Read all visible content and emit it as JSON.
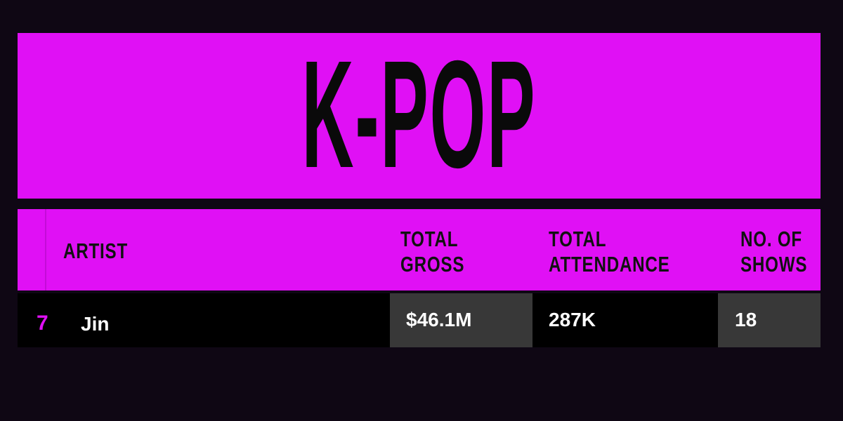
{
  "header": {
    "title": "K-POP"
  },
  "table": {
    "columns": [
      {
        "lines": [
          "ARTIST"
        ]
      },
      {
        "lines": [
          "TOTAL",
          "GROSS"
        ]
      },
      {
        "lines": [
          "TOTAL",
          "ATTENDANCE"
        ]
      },
      {
        "lines": [
          "NO. OF",
          "SHOWS"
        ]
      }
    ],
    "rows": [
      [
        "7",
        "Jin",
        "$46.1M",
        "287K",
        "18"
      ]
    ]
  }
}
